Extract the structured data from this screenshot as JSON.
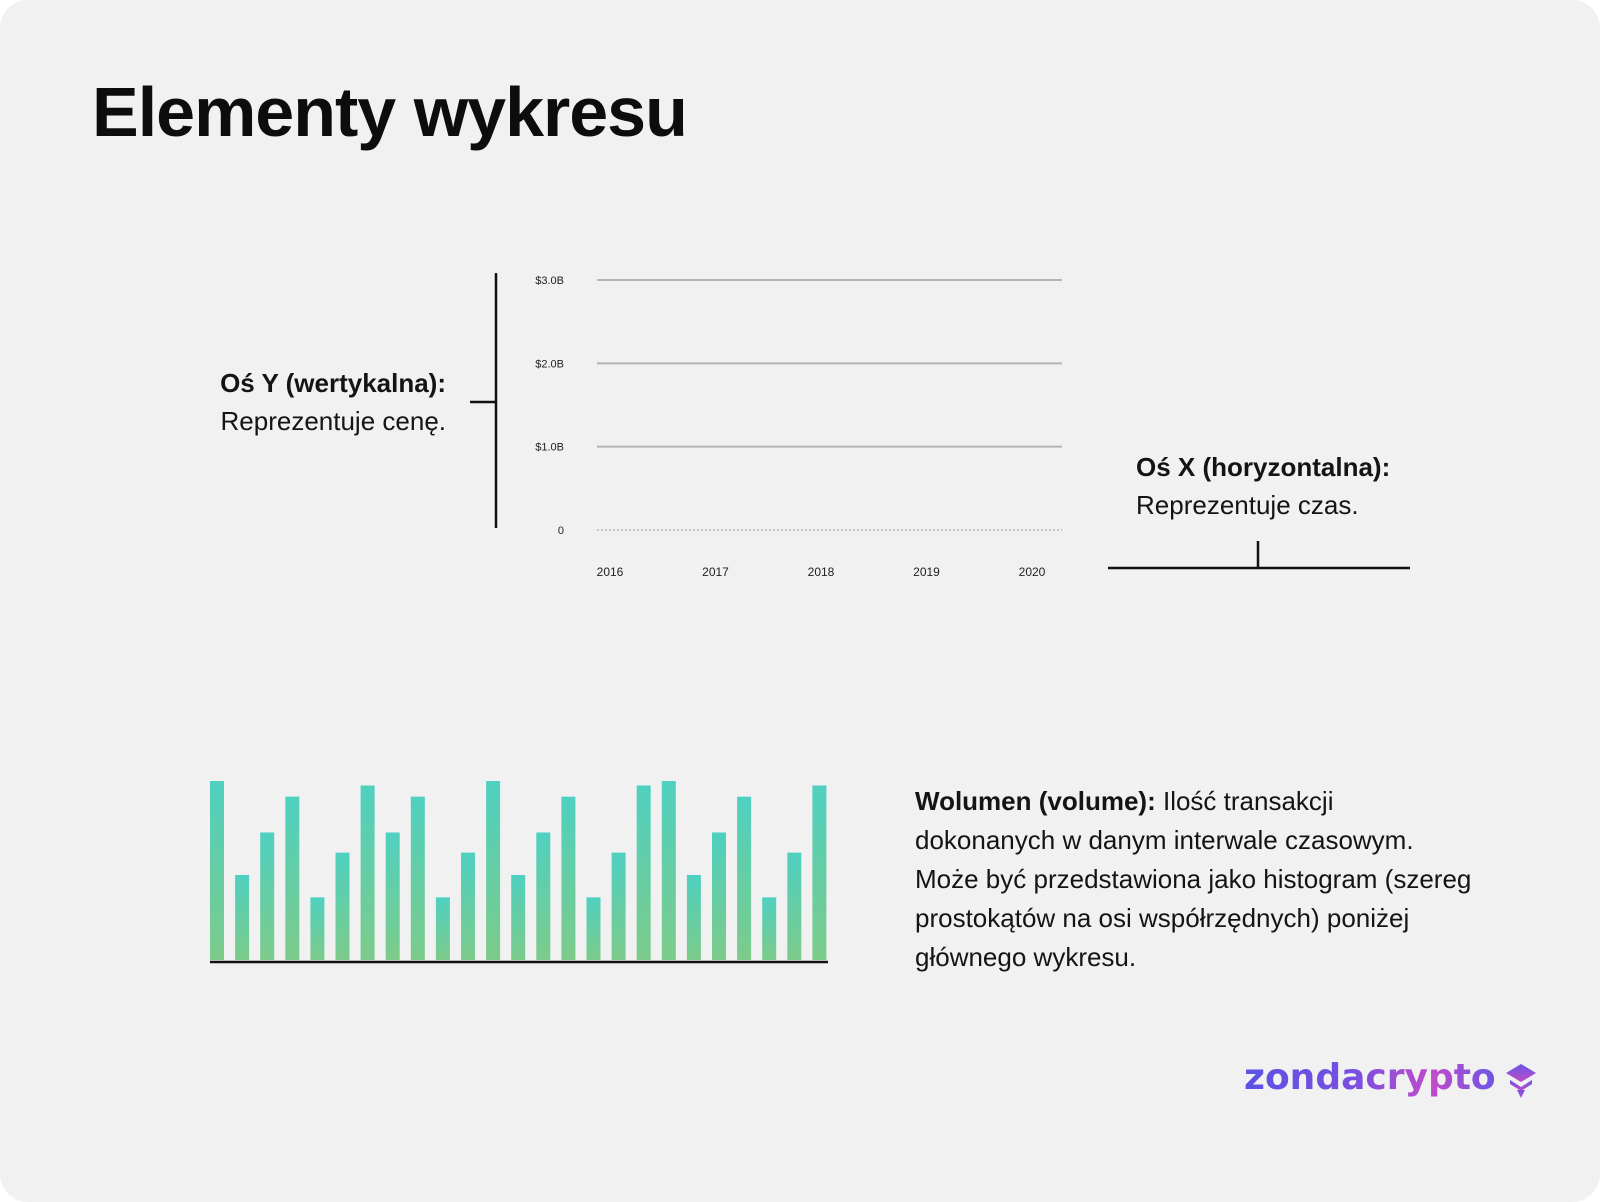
{
  "page": {
    "title": "Elementy wykresu",
    "brand": "zondacrypto"
  },
  "labels": {
    "y_axis_title": "Oś Y (wertykalna):",
    "y_axis_text": "Reprezentuje cenę.",
    "x_axis_title": "Oś X (horyzontalna):",
    "x_axis_text": "Reprezentuje czas.",
    "volume_title": "Wolumen (volume):",
    "volume_text": " Ilość transakcji dokonanych w danym interwale czasowym. Może być przedstawiona jako histogram (szereg prostokątów na osi współrzędnych) poniżej głównego wykresu."
  },
  "colors": {
    "background": "#f1f1f1",
    "gridline": "#b5b5b5",
    "axis": "#111111",
    "bar_top": "#4fd0c0",
    "bar_bottom": "#7ccb8a",
    "brand_start": "#5b52e6",
    "brand_end": "#c04cc8"
  },
  "chart_data": [
    {
      "type": "line",
      "title": "",
      "xlabel": "",
      "ylabel": "",
      "x_ticks": [
        "2016",
        "2017",
        "2018",
        "2019",
        "2020"
      ],
      "y_ticks": [
        {
          "value": 0,
          "label": "0"
        },
        {
          "value": 1.0,
          "label": "$1.0B"
        },
        {
          "value": 2.0,
          "label": "$2.0B"
        },
        {
          "value": 3.0,
          "label": "$3.0B"
        }
      ],
      "ylim": [
        0,
        3.0
      ],
      "grid": true,
      "series": []
    },
    {
      "type": "bar",
      "title": "",
      "values": [
        8,
        3.8,
        5.7,
        7.3,
        2.8,
        4.8,
        7.8,
        5.7,
        7.3,
        2.8,
        4.8,
        8,
        3.8,
        5.7,
        7.3,
        2.8,
        4.8,
        7.8,
        8,
        3.8,
        5.7,
        7.3,
        2.8,
        4.8,
        7.8
      ],
      "ylim": [
        0,
        8
      ]
    }
  ]
}
